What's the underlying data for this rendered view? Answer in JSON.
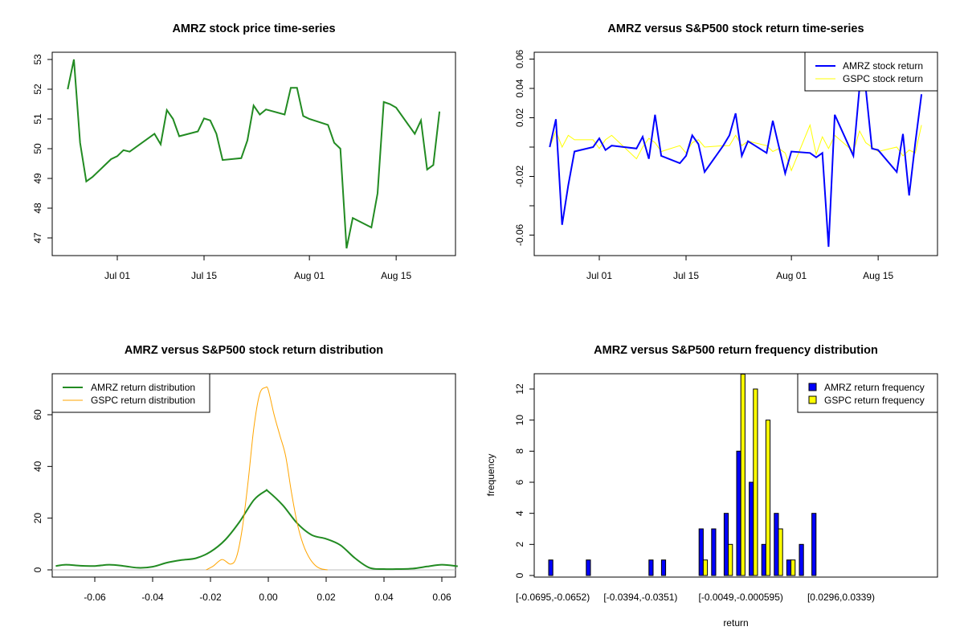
{
  "chart_data": [
    {
      "type": "line",
      "title": "AMRZ stock price time-series",
      "xlabel": "",
      "ylabel": "",
      "ylim": [
        46.6,
        53.3
      ],
      "yticks": [
        "47",
        "48",
        "49",
        "50",
        "51",
        "52",
        "53"
      ],
      "xticks": [
        "Jul 01",
        "Jul 15",
        "Aug 01",
        "Aug 15"
      ],
      "x": [
        "2025-06-23",
        "2025-06-24",
        "2025-06-25",
        "2025-06-26",
        "2025-06-27",
        "2025-06-30",
        "2025-07-01",
        "2025-07-02",
        "2025-07-03",
        "2025-07-07",
        "2025-07-08",
        "2025-07-09",
        "2025-07-10",
        "2025-07-11",
        "2025-07-14",
        "2025-07-15",
        "2025-07-16",
        "2025-07-17",
        "2025-07-18",
        "2025-07-21",
        "2025-07-22",
        "2025-07-23",
        "2025-07-24",
        "2025-07-25",
        "2025-07-28",
        "2025-07-29",
        "2025-07-30",
        "2025-07-31",
        "2025-08-01",
        "2025-08-04",
        "2025-08-05",
        "2025-08-06",
        "2025-08-07",
        "2025-08-08",
        "2025-08-11",
        "2025-08-12",
        "2025-08-13",
        "2025-08-14",
        "2025-08-15",
        "2025-08-18",
        "2025-08-19",
        "2025-08-20",
        "2025-08-21",
        "2025-08-22"
      ],
      "series": [
        {
          "name": "AMRZ",
          "color": "#228B22",
          "values": [
            52.0,
            53.0,
            50.2,
            48.9,
            49.05,
            49.65,
            49.75,
            49.95,
            49.9,
            50.5,
            50.15,
            51.3,
            51.0,
            50.42,
            50.58,
            51.02,
            50.95,
            50.5,
            49.62,
            49.68,
            50.28,
            51.45,
            51.15,
            51.32,
            51.15,
            52.05,
            52.05,
            51.1,
            51.0,
            50.8,
            50.2,
            50.0,
            46.65,
            47.67,
            47.35,
            48.5,
            51.57,
            51.5,
            51.38,
            50.5,
            50.95,
            49.3,
            49.45,
            51.25
          ]
        }
      ]
    },
    {
      "type": "line",
      "title": "AMRZ versus S&P500 stock return time-series",
      "xlabel": "",
      "ylabel": "",
      "ylim": [
        -0.071,
        0.067
      ],
      "yticks": [
        "-0.06",
        "-0.02",
        "0.02",
        "0.04",
        "0.06"
      ],
      "ytick_values": [
        -0.06,
        -0.04,
        -0.02,
        0.0,
        0.02,
        0.04,
        0.06
      ],
      "xticks": [
        "Jul 01",
        "Jul 15",
        "Aug 01",
        "Aug 15"
      ],
      "legend": {
        "position": "top-right",
        "entries": [
          "AMRZ stock return",
          "GSPC stock return"
        ]
      },
      "series": [
        {
          "name": "AMRZ stock return",
          "color": "#0000FF",
          "values": [
            0.0,
            0.019,
            -0.053,
            -0.026,
            -0.003,
            0.0,
            0.006,
            -0.002,
            0.001,
            -0.001,
            0.007,
            -0.008,
            0.022,
            -0.006,
            -0.011,
            -0.006,
            0.008,
            0.002,
            -0.017,
            0.001,
            0.008,
            0.023,
            -0.006,
            0.004,
            -0.004,
            0.018,
            0.0,
            -0.018,
            -0.003,
            -0.004,
            -0.007,
            -0.004,
            -0.068,
            0.022,
            -0.006,
            0.041,
            0.04,
            -0.001,
            -0.002,
            -0.017,
            0.009,
            -0.033,
            0.003,
            0.036
          ]
        },
        {
          "name": "GSPC stock return",
          "color": "#FFFF00",
          "values": [
            0.0,
            0.011,
            0.0,
            0.008,
            0.005,
            0.005,
            -0.001,
            0.005,
            0.008,
            -0.008,
            0.0,
            0.006,
            0.003,
            -0.003,
            0.001,
            -0.004,
            0.003,
            0.005,
            0.0,
            0.001,
            0.001,
            0.008,
            0.001,
            0.004,
            0.001,
            -0.003,
            -0.001,
            -0.004,
            -0.016,
            0.015,
            -0.005,
            0.007,
            -0.001,
            0.008,
            -0.003,
            0.011,
            0.003,
            0.0,
            -0.003,
            0.0,
            -0.006,
            -0.002,
            -0.004,
            0.015
          ]
        }
      ]
    },
    {
      "type": "line",
      "title": "AMRZ versus S&P500 stock return distribution",
      "xlabel": "",
      "ylabel": "",
      "xlim": [
        -0.0735,
        0.0655
      ],
      "ylim": [
        -2.8,
        75.5
      ],
      "xticks": [
        "-0.06",
        "-0.04",
        "-0.02",
        "0.00",
        "0.02",
        "0.04",
        "0.06"
      ],
      "xtick_values": [
        -0.06,
        -0.04,
        -0.02,
        0.0,
        0.02,
        0.04,
        0.06
      ],
      "yticks": [
        "0",
        "20",
        "40",
        "60"
      ],
      "ytick_values": [
        0,
        20,
        40,
        60
      ],
      "legend": {
        "position": "top-left",
        "entries": [
          "AMRZ return distribution",
          "GSPC return distribution"
        ]
      },
      "series": [
        {
          "name": "AMRZ return distribution",
          "color": "#228B22",
          "x": [
            -0.0735,
            -0.07,
            -0.065,
            -0.06,
            -0.055,
            -0.05,
            -0.045,
            -0.04,
            -0.035,
            -0.03,
            -0.025,
            -0.02,
            -0.015,
            -0.01,
            -0.005,
            -0.001,
            0.0,
            0.005,
            0.01,
            0.015,
            0.02,
            0.025,
            0.03,
            0.035,
            0.04,
            0.045,
            0.05,
            0.055,
            0.06,
            0.0655
          ],
          "y": [
            1.5,
            2.0,
            1.6,
            1.5,
            2.0,
            1.5,
            0.8,
            1.2,
            2.8,
            3.8,
            4.5,
            7.0,
            11.5,
            18.5,
            27.0,
            30.5,
            30.3,
            25.0,
            18.0,
            13.5,
            12.0,
            9.5,
            4.5,
            0.8,
            0.3,
            0.3,
            0.5,
            1.3,
            2.0,
            1.4
          ]
        },
        {
          "name": "GSPC return distribution",
          "color": "#FFA500",
          "x": [
            -0.0215,
            -0.019,
            -0.016,
            -0.013,
            -0.011,
            -0.009,
            -0.007,
            -0.005,
            -0.003,
            -0.001,
            0.0,
            0.002,
            0.004,
            0.006,
            0.008,
            0.01,
            0.012,
            0.014,
            0.016,
            0.018,
            0.0205
          ],
          "y": [
            0.0,
            1.5,
            4.0,
            2.2,
            5.0,
            16.0,
            34.0,
            55.0,
            68.0,
            70.5,
            69.5,
            60.0,
            52.0,
            44.0,
            30.0,
            18.0,
            10.0,
            5.0,
            2.0,
            0.5,
            0.0
          ]
        }
      ]
    },
    {
      "type": "bar",
      "title": "AMRZ versus S&P500 return frequency distribution",
      "xlabel": "return",
      "ylabel": "frequency",
      "ylim": [
        0,
        13
      ],
      "yticks": [
        "0",
        "2",
        "4",
        "6",
        "8",
        "10",
        "12"
      ],
      "ytick_values": [
        0,
        2,
        4,
        6,
        8,
        10,
        12
      ],
      "xtick_labels": [
        "[-0.0695,-0.0652)",
        "[-0.0394,-0.0351)",
        "[-0.0049,-0.000595)",
        "[0.0296,0.0339)"
      ],
      "xtick_bins": [
        0,
        7,
        15,
        23
      ],
      "legend": {
        "position": "top-right",
        "entries": [
          "AMRZ return frequency",
          "GSPC return frequency"
        ]
      },
      "series": [
        {
          "name": "AMRZ return frequency",
          "color": "#0000FF",
          "values": [
            1,
            0,
            0,
            1,
            0,
            0,
            0,
            0,
            1,
            1,
            0,
            0,
            3,
            3,
            4,
            8,
            6,
            2,
            4,
            1,
            2,
            4,
            0,
            0,
            0,
            0,
            0,
            0,
            0,
            0
          ]
        },
        {
          "name": "GSPC return frequency",
          "color": "#FFFF00",
          "values": [
            0,
            0,
            0,
            0,
            0,
            0,
            0,
            0,
            0,
            0,
            0,
            0,
            1,
            0,
            2,
            13,
            12,
            10,
            3,
            1,
            0,
            0,
            0,
            0,
            0,
            0,
            0,
            0,
            0,
            0
          ]
        }
      ]
    }
  ]
}
